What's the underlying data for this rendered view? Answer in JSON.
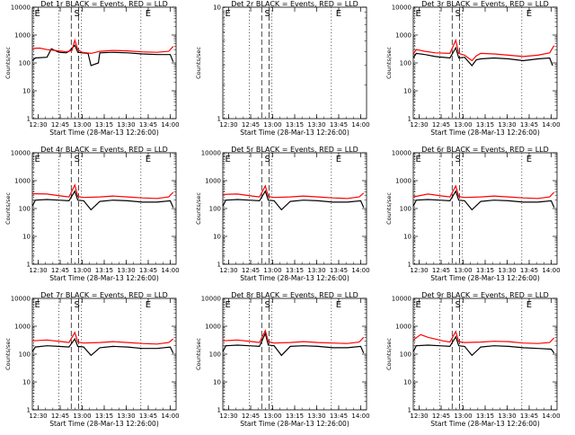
{
  "chart_data": {
    "type": "line",
    "panel_count": 9,
    "grid": false,
    "y_scale": "log",
    "ylim": [
      1,
      10000
    ],
    "y_ticklabels": [
      "1",
      "10",
      "100",
      "1000",
      "10000"
    ],
    "ylabel": "Counts/sec",
    "xlabel": "Start Time (28-Mar-13 12:26:00)",
    "x_ticklabels": [
      "12:30",
      "12:45",
      "13:00",
      "13:15",
      "13:30",
      "13:45",
      "14:00"
    ],
    "x_ticks_minutes": [
      4,
      19,
      34,
      49,
      64,
      79,
      94
    ],
    "xlim_minutes": [
      0,
      98
    ],
    "series_colors": {
      "events": "#000000",
      "lld": "#ff0000"
    },
    "panels": [
      {
        "title": "Det 1r BLACK = Events, RED = LLD",
        "markers": [
          "E",
          "S",
          "E"
        ],
        "events": [
          [
            0,
            120
          ],
          [
            2,
            150
          ],
          [
            10,
            160
          ],
          [
            13,
            320
          ],
          [
            18,
            240
          ],
          [
            23,
            230
          ],
          [
            25,
            260
          ],
          [
            29,
            430
          ],
          [
            31,
            240
          ],
          [
            34,
            230
          ],
          [
            38,
            220
          ],
          [
            40,
            80
          ],
          [
            45,
            100
          ],
          [
            46,
            230
          ],
          [
            55,
            240
          ],
          [
            65,
            230
          ],
          [
            75,
            210
          ],
          [
            85,
            200
          ],
          [
            94,
            200
          ],
          [
            96,
            110
          ]
        ],
        "lld": [
          [
            0,
            330
          ],
          [
            5,
            340
          ],
          [
            10,
            300
          ],
          [
            18,
            270
          ],
          [
            23,
            250
          ],
          [
            27,
            280
          ],
          [
            29,
            650
          ],
          [
            31,
            300
          ],
          [
            34,
            240
          ],
          [
            40,
            220
          ],
          [
            46,
            260
          ],
          [
            55,
            280
          ],
          [
            65,
            270
          ],
          [
            75,
            250
          ],
          [
            85,
            240
          ],
          [
            93,
            260
          ],
          [
            96,
            390
          ]
        ]
      },
      {
        "title": "Det 2r BLACK = Events, RED = LLD",
        "markers": [
          "E",
          "S",
          "E"
        ],
        "ylim": [
          1,
          10
        ],
        "y_ticklabels": [
          "1",
          "10"
        ],
        "events": [],
        "lld": []
      },
      {
        "title": "Det 3r BLACK = Events, RED = LLD",
        "markers": [
          "E",
          "S",
          "E"
        ],
        "events": [
          [
            0,
            150
          ],
          [
            2,
            220
          ],
          [
            8,
            200
          ],
          [
            15,
            170
          ],
          [
            25,
            150
          ],
          [
            29,
            350
          ],
          [
            31,
            150
          ],
          [
            35,
            160
          ],
          [
            40,
            80
          ],
          [
            43,
            130
          ],
          [
            46,
            140
          ],
          [
            55,
            150
          ],
          [
            65,
            140
          ],
          [
            75,
            120
          ],
          [
            85,
            140
          ],
          [
            93,
            150
          ],
          [
            95,
            80
          ]
        ],
        "lld": [
          [
            0,
            210
          ],
          [
            2,
            300
          ],
          [
            8,
            260
          ],
          [
            15,
            230
          ],
          [
            25,
            220
          ],
          [
            29,
            650
          ],
          [
            31,
            220
          ],
          [
            35,
            190
          ],
          [
            40,
            120
          ],
          [
            43,
            180
          ],
          [
            46,
            220
          ],
          [
            55,
            210
          ],
          [
            65,
            190
          ],
          [
            75,
            170
          ],
          [
            85,
            190
          ],
          [
            93,
            230
          ],
          [
            96,
            420
          ]
        ]
      },
      {
        "title": "Det 4r BLACK = Events, RED = LLD",
        "markers": [
          "E",
          "S",
          "E"
        ],
        "events": [
          [
            0,
            120
          ],
          [
            2,
            200
          ],
          [
            10,
            210
          ],
          [
            18,
            200
          ],
          [
            25,
            190
          ],
          [
            29,
            420
          ],
          [
            31,
            200
          ],
          [
            35,
            190
          ],
          [
            40,
            90
          ],
          [
            46,
            180
          ],
          [
            55,
            200
          ],
          [
            65,
            190
          ],
          [
            75,
            170
          ],
          [
            85,
            170
          ],
          [
            94,
            190
          ],
          [
            96,
            110
          ]
        ],
        "lld": [
          [
            0,
            340
          ],
          [
            10,
            330
          ],
          [
            20,
            280
          ],
          [
            25,
            260
          ],
          [
            29,
            700
          ],
          [
            31,
            270
          ],
          [
            35,
            250
          ],
          [
            46,
            260
          ],
          [
            55,
            280
          ],
          [
            65,
            260
          ],
          [
            75,
            240
          ],
          [
            85,
            230
          ],
          [
            93,
            260
          ],
          [
            96,
            380
          ]
        ]
      },
      {
        "title": "Det 5r BLACK = Events, RED = LLD",
        "markers": [
          "E",
          "S",
          "E"
        ],
        "events": [
          [
            0,
            120
          ],
          [
            2,
            200
          ],
          [
            10,
            210
          ],
          [
            18,
            200
          ],
          [
            25,
            190
          ],
          [
            29,
            420
          ],
          [
            31,
            200
          ],
          [
            35,
            190
          ],
          [
            40,
            90
          ],
          [
            46,
            180
          ],
          [
            55,
            200
          ],
          [
            65,
            190
          ],
          [
            75,
            170
          ],
          [
            85,
            170
          ],
          [
            94,
            190
          ],
          [
            96,
            110
          ]
        ],
        "lld": [
          [
            0,
            320
          ],
          [
            10,
            330
          ],
          [
            20,
            280
          ],
          [
            25,
            260
          ],
          [
            29,
            650
          ],
          [
            31,
            270
          ],
          [
            35,
            250
          ],
          [
            46,
            260
          ],
          [
            55,
            280
          ],
          [
            65,
            260
          ],
          [
            75,
            240
          ],
          [
            85,
            230
          ],
          [
            93,
            260
          ],
          [
            96,
            360
          ]
        ]
      },
      {
        "title": "Det 6r BLACK = Events, RED = LLD",
        "markers": [
          "E",
          "S",
          "E"
        ],
        "events": [
          [
            0,
            120
          ],
          [
            2,
            200
          ],
          [
            10,
            210
          ],
          [
            18,
            200
          ],
          [
            25,
            190
          ],
          [
            29,
            420
          ],
          [
            31,
            200
          ],
          [
            35,
            190
          ],
          [
            40,
            90
          ],
          [
            46,
            180
          ],
          [
            55,
            200
          ],
          [
            65,
            190
          ],
          [
            75,
            170
          ],
          [
            85,
            170
          ],
          [
            94,
            190
          ],
          [
            96,
            110
          ]
        ],
        "lld": [
          [
            0,
            260
          ],
          [
            10,
            330
          ],
          [
            20,
            280
          ],
          [
            25,
            260
          ],
          [
            29,
            650
          ],
          [
            31,
            270
          ],
          [
            35,
            250
          ],
          [
            46,
            260
          ],
          [
            55,
            280
          ],
          [
            65,
            260
          ],
          [
            75,
            240
          ],
          [
            85,
            230
          ],
          [
            93,
            260
          ],
          [
            96,
            380
          ]
        ]
      },
      {
        "title": "Det 7r BLACK = Events, RED = LLD",
        "markers": [
          "E",
          "S",
          "E"
        ],
        "events": [
          [
            0,
            120
          ],
          [
            2,
            180
          ],
          [
            10,
            200
          ],
          [
            18,
            190
          ],
          [
            25,
            180
          ],
          [
            29,
            350
          ],
          [
            31,
            190
          ],
          [
            35,
            180
          ],
          [
            40,
            90
          ],
          [
            46,
            170
          ],
          [
            55,
            190
          ],
          [
            65,
            180
          ],
          [
            75,
            160
          ],
          [
            85,
            160
          ],
          [
            94,
            180
          ],
          [
            96,
            110
          ]
        ],
        "lld": [
          [
            0,
            300
          ],
          [
            10,
            320
          ],
          [
            20,
            280
          ],
          [
            25,
            260
          ],
          [
            29,
            600
          ],
          [
            31,
            270
          ],
          [
            35,
            250
          ],
          [
            46,
            260
          ],
          [
            55,
            280
          ],
          [
            65,
            260
          ],
          [
            75,
            240
          ],
          [
            85,
            230
          ],
          [
            93,
            260
          ],
          [
            96,
            350
          ]
        ]
      },
      {
        "title": "Det 8r BLACK = Events, RED = LLD",
        "markers": [
          "E",
          "S",
          "E"
        ],
        "events": [
          [
            0,
            120
          ],
          [
            2,
            200
          ],
          [
            10,
            210
          ],
          [
            18,
            200
          ],
          [
            25,
            190
          ],
          [
            29,
            550
          ],
          [
            31,
            210
          ],
          [
            35,
            200
          ],
          [
            40,
            90
          ],
          [
            46,
            190
          ],
          [
            55,
            200
          ],
          [
            65,
            190
          ],
          [
            75,
            170
          ],
          [
            85,
            170
          ],
          [
            94,
            190
          ],
          [
            96,
            110
          ]
        ],
        "lld": [
          [
            0,
            300
          ],
          [
            10,
            320
          ],
          [
            20,
            280
          ],
          [
            25,
            260
          ],
          [
            29,
            700
          ],
          [
            31,
            280
          ],
          [
            35,
            250
          ],
          [
            46,
            260
          ],
          [
            55,
            280
          ],
          [
            65,
            260
          ],
          [
            75,
            250
          ],
          [
            85,
            240
          ],
          [
            93,
            270
          ],
          [
            96,
            400
          ]
        ]
      },
      {
        "title": "Det 9r BLACK = Events, RED = LLD",
        "markers": [
          "E",
          "S",
          "E"
        ],
        "events": [
          [
            0,
            120
          ],
          [
            2,
            200
          ],
          [
            10,
            210
          ],
          [
            18,
            200
          ],
          [
            25,
            190
          ],
          [
            29,
            420
          ],
          [
            31,
            200
          ],
          [
            35,
            190
          ],
          [
            40,
            90
          ],
          [
            46,
            180
          ],
          [
            55,
            200
          ],
          [
            65,
            190
          ],
          [
            75,
            170
          ],
          [
            85,
            160
          ],
          [
            94,
            150
          ],
          [
            96,
            110
          ]
        ],
        "lld": [
          [
            0,
            320
          ],
          [
            5,
            500
          ],
          [
            10,
            400
          ],
          [
            20,
            300
          ],
          [
            25,
            270
          ],
          [
            29,
            650
          ],
          [
            31,
            280
          ],
          [
            35,
            260
          ],
          [
            46,
            270
          ],
          [
            55,
            290
          ],
          [
            65,
            280
          ],
          [
            75,
            250
          ],
          [
            85,
            240
          ],
          [
            93,
            260
          ],
          [
            96,
            380
          ]
        ]
      }
    ]
  }
}
